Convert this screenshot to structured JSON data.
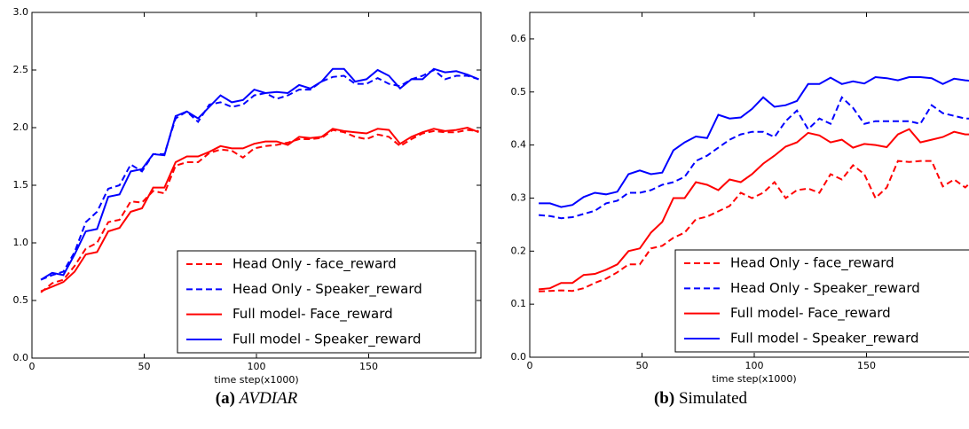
{
  "chart_data": [
    {
      "type": "line",
      "caption_label": "(a)",
      "caption": "AVDIAR",
      "xlabel": "time step(x1000)",
      "xlim": [
        0,
        200
      ],
      "ylim": [
        0,
        3
      ],
      "xticks": [
        0,
        50,
        100,
        150
      ],
      "yticks": [
        {
          "value": 0,
          "label": "0.0"
        },
        0.5,
        {
          "value": 1,
          "label": "1.0"
        },
        1.5,
        {
          "value": 2,
          "label": "2.0"
        },
        2.5,
        {
          "value": 3,
          "label": "3.0"
        }
      ],
      "legend": "lower right",
      "x": [
        4,
        9,
        14,
        19,
        24,
        29,
        34,
        39,
        44,
        49,
        54,
        59,
        64,
        69,
        74,
        79,
        84,
        89,
        94,
        99,
        104,
        109,
        114,
        119,
        124,
        129,
        134,
        139,
        144,
        149,
        154,
        159,
        164,
        169,
        174,
        179,
        184,
        189,
        194,
        199
      ],
      "series": [
        {
          "name": "Head Only - face_reward",
          "color": "#ff0000",
          "linestyle": "dashed",
          "values": [
            0.57,
            0.65,
            0.68,
            0.8,
            0.95,
            1.0,
            1.18,
            1.2,
            1.36,
            1.35,
            1.45,
            1.43,
            1.67,
            1.7,
            1.7,
            1.78,
            1.81,
            1.8,
            1.74,
            1.82,
            1.84,
            1.85,
            1.87,
            1.9,
            1.9,
            1.91,
            1.98,
            1.96,
            1.92,
            1.9,
            1.94,
            1.92,
            1.84,
            1.9,
            1.95,
            1.97,
            1.96,
            1.96,
            1.98,
            1.97
          ]
        },
        {
          "name": "Head Only - Speaker_reward",
          "color": "#0000ff",
          "linestyle": "dashed",
          "values": [
            0.68,
            0.72,
            0.75,
            0.92,
            1.18,
            1.27,
            1.47,
            1.5,
            1.68,
            1.62,
            1.77,
            1.77,
            2.08,
            2.14,
            2.05,
            2.2,
            2.22,
            2.18,
            2.2,
            2.28,
            2.3,
            2.25,
            2.28,
            2.33,
            2.33,
            2.4,
            2.44,
            2.45,
            2.38,
            2.38,
            2.43,
            2.38,
            2.36,
            2.42,
            2.45,
            2.5,
            2.42,
            2.45,
            2.45,
            2.42
          ]
        },
        {
          "name": "Full model- Face_reward",
          "color": "#ff0000",
          "linestyle": "solid",
          "values": [
            0.58,
            0.62,
            0.66,
            0.75,
            0.9,
            0.92,
            1.1,
            1.13,
            1.27,
            1.3,
            1.48,
            1.48,
            1.7,
            1.75,
            1.75,
            1.79,
            1.84,
            1.82,
            1.82,
            1.86,
            1.88,
            1.88,
            1.85,
            1.92,
            1.91,
            1.92,
            1.99,
            1.97,
            1.96,
            1.95,
            1.99,
            1.98,
            1.86,
            1.92,
            1.96,
            1.99,
            1.97,
            1.98,
            2.0,
            1.96
          ]
        },
        {
          "name": "Full model - Speaker_reward",
          "color": "#0000ff",
          "linestyle": "solid",
          "values": [
            0.68,
            0.74,
            0.72,
            0.9,
            1.1,
            1.12,
            1.4,
            1.42,
            1.62,
            1.64,
            1.77,
            1.76,
            2.1,
            2.14,
            2.08,
            2.18,
            2.28,
            2.22,
            2.24,
            2.33,
            2.3,
            2.31,
            2.3,
            2.37,
            2.34,
            2.4,
            2.51,
            2.51,
            2.4,
            2.42,
            2.5,
            2.45,
            2.34,
            2.42,
            2.42,
            2.51,
            2.48,
            2.49,
            2.46,
            2.42
          ]
        }
      ]
    },
    {
      "type": "line",
      "caption_label": "(b)",
      "caption": "Simulated",
      "xlabel": "time step(x1000)",
      "xlim": [
        0,
        200
      ],
      "ylim": [
        0,
        0.65
      ],
      "xticks": [
        0,
        50,
        100,
        150
      ],
      "yticks": [
        {
          "value": 0,
          "label": "0.0"
        },
        0.1,
        0.2,
        0.3,
        0.4,
        0.5,
        0.6
      ],
      "legend": "lower right",
      "x": [
        4,
        9,
        14,
        19,
        24,
        29,
        34,
        39,
        44,
        49,
        54,
        59,
        64,
        69,
        74,
        79,
        84,
        89,
        94,
        99,
        104,
        109,
        114,
        119,
        124,
        129,
        134,
        139,
        144,
        149,
        154,
        159,
        164,
        169,
        174,
        179,
        184,
        189,
        194,
        199
      ],
      "series": [
        {
          "name": "Head Only - face_reward",
          "color": "#ff0000",
          "linestyle": "dashed",
          "values": [
            0.124,
            0.125,
            0.126,
            0.125,
            0.13,
            0.14,
            0.148,
            0.16,
            0.175,
            0.175,
            0.205,
            0.21,
            0.225,
            0.235,
            0.26,
            0.265,
            0.275,
            0.285,
            0.31,
            0.3,
            0.31,
            0.33,
            0.3,
            0.315,
            0.318,
            0.31,
            0.345,
            0.335,
            0.362,
            0.345,
            0.3,
            0.32,
            0.37,
            0.368,
            0.37,
            0.37,
            0.322,
            0.335,
            0.32,
            0.34
          ]
        },
        {
          "name": "Head Only - Speaker_reward",
          "color": "#0000ff",
          "linestyle": "dashed",
          "values": [
            0.268,
            0.266,
            0.262,
            0.264,
            0.27,
            0.276,
            0.29,
            0.295,
            0.31,
            0.31,
            0.315,
            0.325,
            0.33,
            0.34,
            0.37,
            0.38,
            0.395,
            0.41,
            0.42,
            0.425,
            0.425,
            0.415,
            0.445,
            0.465,
            0.43,
            0.45,
            0.44,
            0.49,
            0.47,
            0.44,
            0.445,
            0.445,
            0.445,
            0.445,
            0.44,
            0.475,
            0.46,
            0.455,
            0.45,
            0.45
          ]
        },
        {
          "name": "Full model- Face_reward",
          "color": "#ff0000",
          "linestyle": "solid",
          "values": [
            0.128,
            0.13,
            0.14,
            0.14,
            0.155,
            0.157,
            0.165,
            0.175,
            0.2,
            0.205,
            0.235,
            0.255,
            0.3,
            0.3,
            0.33,
            0.325,
            0.315,
            0.335,
            0.33,
            0.345,
            0.365,
            0.38,
            0.397,
            0.405,
            0.423,
            0.418,
            0.405,
            0.41,
            0.395,
            0.402,
            0.4,
            0.396,
            0.42,
            0.43,
            0.405,
            0.41,
            0.415,
            0.425,
            0.42,
            0.42
          ]
        },
        {
          "name": "Full model - Speaker_reward",
          "color": "#0000ff",
          "linestyle": "solid",
          "values": [
            0.29,
            0.29,
            0.283,
            0.287,
            0.302,
            0.31,
            0.307,
            0.312,
            0.345,
            0.352,
            0.345,
            0.348,
            0.39,
            0.405,
            0.416,
            0.413,
            0.457,
            0.45,
            0.452,
            0.468,
            0.49,
            0.472,
            0.475,
            0.483,
            0.515,
            0.515,
            0.527,
            0.515,
            0.52,
            0.516,
            0.528,
            0.526,
            0.522,
            0.528,
            0.528,
            0.526,
            0.515,
            0.525,
            0.522,
            0.52
          ]
        }
      ]
    }
  ]
}
